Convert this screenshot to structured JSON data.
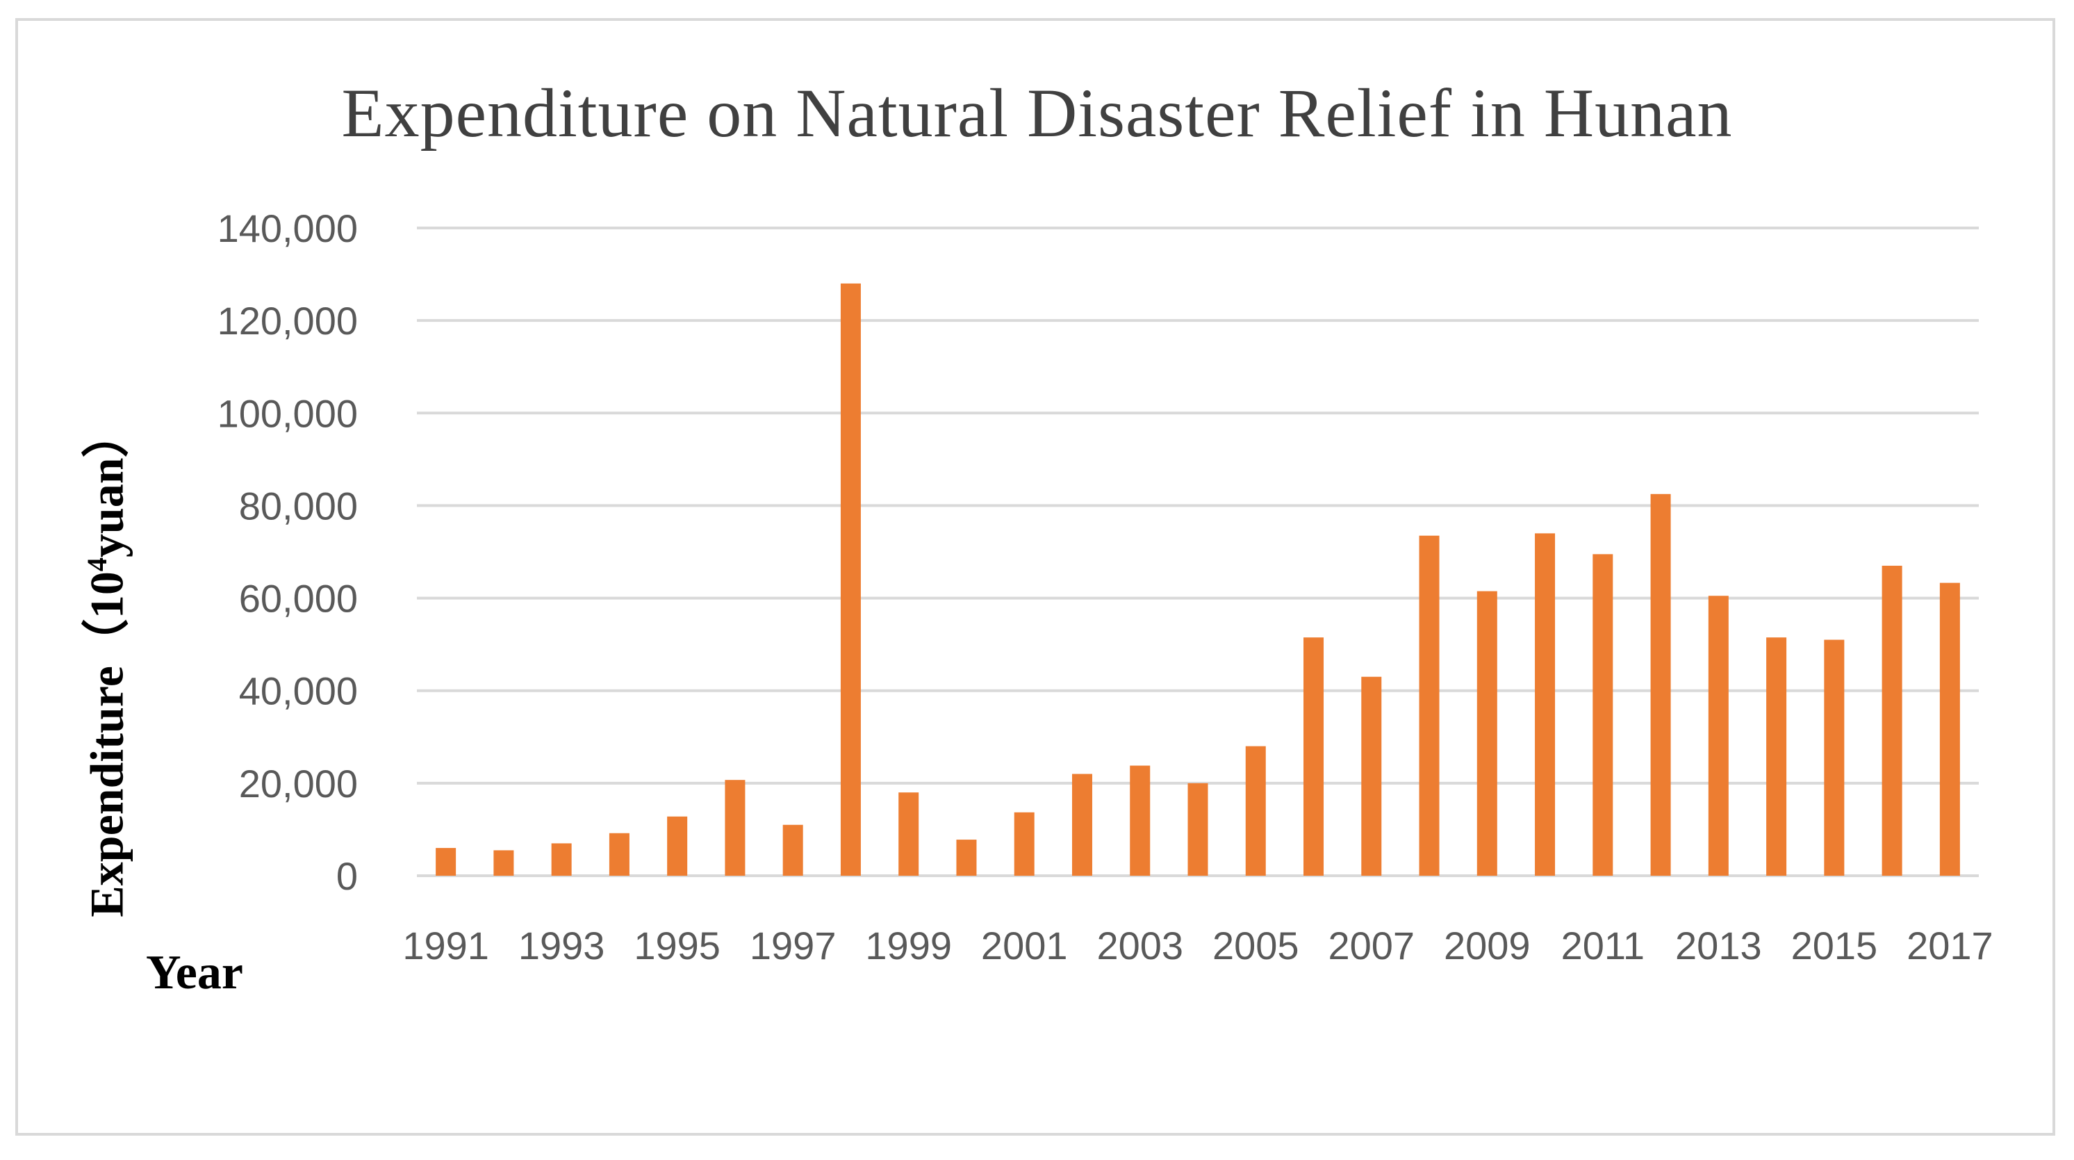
{
  "chart_data": {
    "type": "bar",
    "title": "Expenditure on Natural Disaster Relief in Hunan",
    "ylabel_main": "Expenditure",
    "ylabel_unit_prefix": "（10",
    "ylabel_unit_exp": "4",
    "ylabel_unit_suffix": "yuan）",
    "xlabel": "Year",
    "ylim": [
      0,
      140000
    ],
    "yticks": [
      0,
      20000,
      40000,
      60000,
      80000,
      100000,
      120000,
      140000
    ],
    "ytick_labels": [
      "0",
      "20,000",
      "40,000",
      "60,000",
      "80,000",
      "100,000",
      "120,000",
      "140,000"
    ],
    "categories": [
      "1991",
      "1992",
      "1993",
      "1994",
      "1995",
      "1996",
      "1997",
      "1998",
      "1999",
      "2000",
      "2001",
      "2002",
      "2003",
      "2004",
      "2005",
      "2006",
      "2007",
      "2008",
      "2009",
      "2010",
      "2011",
      "2012",
      "2013",
      "2014",
      "2015",
      "2016",
      "2017"
    ],
    "xtick_labels": [
      "1991",
      "1993",
      "1995",
      "1997",
      "1999",
      "2001",
      "2003",
      "2005",
      "2007",
      "2009",
      "2011",
      "2013",
      "2015",
      "2017"
    ],
    "values": [
      6000,
      5500,
      7000,
      9200,
      12800,
      20700,
      11000,
      128000,
      18000,
      7800,
      13700,
      22000,
      23800,
      20000,
      28000,
      51500,
      43000,
      73500,
      61500,
      74000,
      69500,
      82500,
      60500,
      51500,
      51000,
      67000,
      63300
    ],
    "bar_color": "#ed7d31",
    "grid": true
  }
}
